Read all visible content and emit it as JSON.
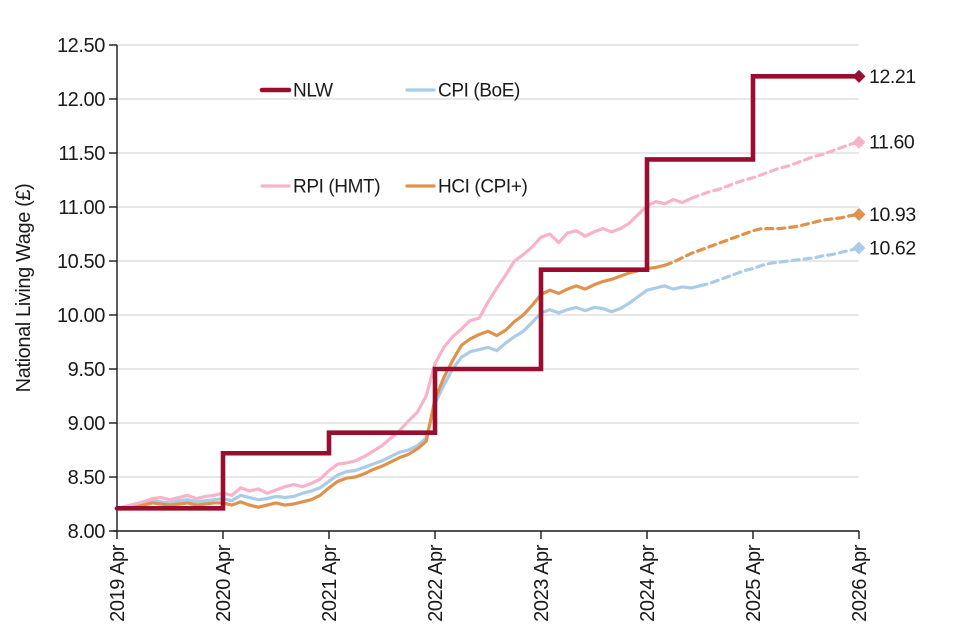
{
  "chart_data": {
    "type": "line",
    "title": "",
    "ylabel": "National Living Wage (£)",
    "xlabel": "",
    "ylim": [
      8.0,
      12.5
    ],
    "grid": "horizontal",
    "gridline_color": "#d9d9d9",
    "axis_color": "#1a1a1a",
    "y_tick_labels": [
      "8.00",
      "8.50",
      "9.00",
      "9.50",
      "10.00",
      "10.50",
      "11.00",
      "11.50",
      "12.00",
      "12.50"
    ],
    "x_tick_labels": [
      "2019 Apr",
      "2020 Apr",
      "2021 Apr",
      "2022 Apr",
      "2023 Apr",
      "2024 Apr",
      "2025 Apr",
      "2026 Apr"
    ],
    "x_months_per_tick": 12,
    "n_points": 85,
    "legend": {
      "position": "top-left-inside",
      "items": [
        {
          "label": "NLW",
          "series": 3
        },
        {
          "label": "CPI (BoE)",
          "series": 0
        },
        {
          "label": "RPI (HMT)",
          "series": 2
        },
        {
          "label": "HCI (CPI+)",
          "series": 1
        }
      ]
    },
    "series": [
      {
        "name": "CPI (BoE)",
        "color": "#A9CCE9",
        "width": 3.2,
        "step": false,
        "forecast_from": 66,
        "end_label": "10.62",
        "values": [
          8.21,
          8.22,
          8.24,
          8.25,
          8.28,
          8.27,
          8.26,
          8.28,
          8.29,
          8.27,
          8.28,
          8.29,
          8.3,
          8.28,
          8.33,
          8.31,
          8.29,
          8.3,
          8.32,
          8.31,
          8.32,
          8.35,
          8.37,
          8.4,
          8.46,
          8.52,
          8.55,
          8.56,
          8.59,
          8.62,
          8.65,
          8.69,
          8.73,
          8.75,
          8.79,
          8.86,
          9.18,
          9.35,
          9.5,
          9.61,
          9.66,
          9.68,
          9.7,
          9.67,
          9.74,
          9.8,
          9.85,
          9.93,
          10.02,
          10.05,
          10.02,
          10.05,
          10.07,
          10.04,
          10.07,
          10.06,
          10.03,
          10.06,
          10.11,
          10.17,
          10.23,
          10.25,
          10.27,
          10.24,
          10.26,
          10.25,
          10.27,
          10.29,
          10.32,
          10.35,
          10.38,
          10.41,
          10.43,
          10.46,
          10.48,
          10.49,
          10.5,
          10.51,
          10.52,
          10.53,
          10.55,
          10.56,
          10.58,
          10.6,
          10.62
        ]
      },
      {
        "name": "HCI (CPI+)",
        "color": "#E0924C",
        "width": 3.2,
        "step": false,
        "forecast_from": 62,
        "end_label": "10.93",
        "values": [
          8.21,
          8.22,
          8.23,
          8.24,
          8.26,
          8.25,
          8.24,
          8.25,
          8.26,
          8.24,
          8.25,
          8.26,
          8.26,
          8.24,
          8.27,
          8.24,
          8.22,
          8.24,
          8.26,
          8.24,
          8.25,
          8.27,
          8.29,
          8.33,
          8.4,
          8.46,
          8.49,
          8.5,
          8.53,
          8.57,
          8.6,
          8.64,
          8.68,
          8.71,
          8.76,
          8.83,
          9.22,
          9.42,
          9.58,
          9.72,
          9.78,
          9.82,
          9.85,
          9.81,
          9.86,
          9.94,
          10.0,
          10.09,
          10.19,
          10.23,
          10.2,
          10.24,
          10.27,
          10.24,
          10.28,
          10.31,
          10.33,
          10.36,
          10.39,
          10.41,
          10.43,
          10.44,
          10.46,
          10.49,
          10.53,
          10.57,
          10.6,
          10.63,
          10.66,
          10.69,
          10.72,
          10.75,
          10.78,
          10.8,
          10.8,
          10.8,
          10.81,
          10.82,
          10.84,
          10.86,
          10.88,
          10.89,
          10.9,
          10.92,
          10.93
        ]
      },
      {
        "name": "RPI (HMT)",
        "color": "#F8B3CB",
        "width": 3.2,
        "step": false,
        "forecast_from": 65,
        "end_label": "11.60",
        "values": [
          8.21,
          8.23,
          8.25,
          8.27,
          8.3,
          8.31,
          8.29,
          8.31,
          8.33,
          8.3,
          8.32,
          8.33,
          8.35,
          8.33,
          8.4,
          8.37,
          8.39,
          8.35,
          8.38,
          8.41,
          8.43,
          8.41,
          8.44,
          8.48,
          8.56,
          8.62,
          8.63,
          8.65,
          8.69,
          8.74,
          8.79,
          8.86,
          8.93,
          9.02,
          9.1,
          9.25,
          9.55,
          9.7,
          9.8,
          9.87,
          9.95,
          9.97,
          10.12,
          10.25,
          10.37,
          10.5,
          10.56,
          10.63,
          10.72,
          10.75,
          10.67,
          10.76,
          10.78,
          10.73,
          10.77,
          10.8,
          10.77,
          10.8,
          10.85,
          10.93,
          11.01,
          11.05,
          11.03,
          11.07,
          11.04,
          11.08,
          11.11,
          11.14,
          11.16,
          11.19,
          11.22,
          11.25,
          11.27,
          11.3,
          11.33,
          11.36,
          11.38,
          11.41,
          11.44,
          11.47,
          11.49,
          11.52,
          11.55,
          11.58,
          11.6
        ]
      },
      {
        "name": "NLW",
        "color": "#970E2F",
        "width": 4.6,
        "step": true,
        "forecast_from": null,
        "end_label": "12.21",
        "values": [
          8.21,
          8.21,
          8.21,
          8.21,
          8.21,
          8.21,
          8.21,
          8.21,
          8.21,
          8.21,
          8.21,
          8.21,
          8.72,
          8.72,
          8.72,
          8.72,
          8.72,
          8.72,
          8.72,
          8.72,
          8.72,
          8.72,
          8.72,
          8.72,
          8.91,
          8.91,
          8.91,
          8.91,
          8.91,
          8.91,
          8.91,
          8.91,
          8.91,
          8.91,
          8.91,
          8.91,
          9.5,
          9.5,
          9.5,
          9.5,
          9.5,
          9.5,
          9.5,
          9.5,
          9.5,
          9.5,
          9.5,
          9.5,
          10.42,
          10.42,
          10.42,
          10.42,
          10.42,
          10.42,
          10.42,
          10.42,
          10.42,
          10.42,
          10.42,
          10.42,
          11.44,
          11.44,
          11.44,
          11.44,
          11.44,
          11.44,
          11.44,
          11.44,
          11.44,
          11.44,
          11.44,
          11.44,
          12.21,
          12.21,
          12.21,
          12.21,
          12.21,
          12.21,
          12.21,
          12.21,
          12.21,
          12.21,
          12.21,
          12.21,
          12.21
        ]
      }
    ]
  }
}
